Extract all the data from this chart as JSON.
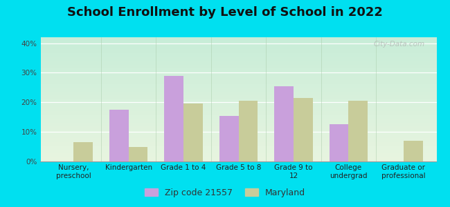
{
  "title": "School Enrollment by Level of School in 2022",
  "categories": [
    "Nursery,\npreschool",
    "Kindergarten",
    "Grade 1 to 4",
    "Grade 5 to 8",
    "Grade 9 to\n12",
    "College\nundergrad",
    "Graduate or\nprofessional"
  ],
  "zip_values": [
    0,
    17.5,
    29.0,
    15.5,
    25.5,
    12.5,
    0
  ],
  "maryland_values": [
    6.5,
    5.0,
    19.5,
    20.5,
    21.5,
    20.5,
    7.0
  ],
  "zip_color": "#c9a0dc",
  "maryland_color": "#c8cc9a",
  "background_outer": "#00e0f0",
  "ylim": [
    0,
    42
  ],
  "yticks": [
    0,
    10,
    20,
    30,
    40
  ],
  "ytick_labels": [
    "0%",
    "10%",
    "20%",
    "30%",
    "40%"
  ],
  "bar_width": 0.35,
  "legend_zip_label": "Zip code 21557",
  "legend_maryland_label": "Maryland",
  "title_fontsize": 13,
  "tick_fontsize": 7.5,
  "legend_fontsize": 9,
  "watermark_text": "City-Data.com"
}
